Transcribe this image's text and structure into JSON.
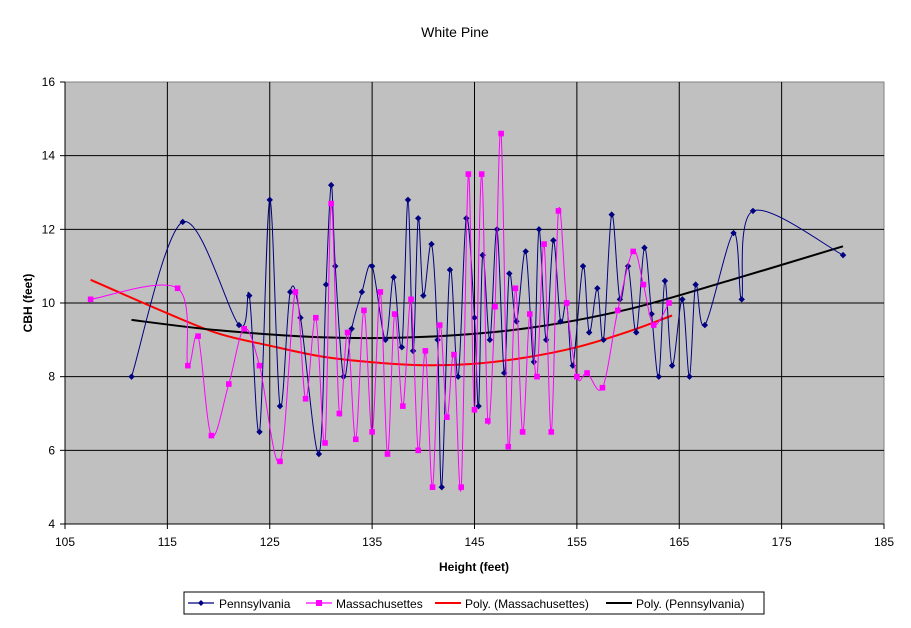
{
  "chart_data": {
    "type": "scatter",
    "title": "White Pine",
    "xlabel": "Height (feet)",
    "ylabel": "CBH (feet)",
    "xlim": [
      105,
      185
    ],
    "ylim": [
      4,
      16
    ],
    "xticks": [
      105,
      115,
      125,
      135,
      145,
      155,
      165,
      175,
      185
    ],
    "yticks": [
      4,
      6,
      8,
      10,
      12,
      14,
      16
    ],
    "grid": true,
    "plot_background": "#C0C0C0",
    "legend_position": "bottom",
    "series": [
      {
        "name": "Pennsylvania",
        "kind": "smoothed-line-markers",
        "marker": "diamond",
        "color": "#000080",
        "x": [
          111.5,
          116.5,
          122,
          123,
          124,
          125,
          126,
          127,
          128,
          129.8,
          130.5,
          131,
          131.4,
          132.2,
          133,
          134,
          135,
          136.3,
          137.1,
          137.9,
          138.5,
          139,
          139.5,
          140,
          140.8,
          141.4,
          141.8,
          142.6,
          143.4,
          144.2,
          145,
          145.4,
          145.8,
          146.5,
          147.2,
          147.9,
          148.4,
          149.1,
          150,
          150.8,
          151.3,
          152,
          152.7,
          153.4,
          154,
          154.6,
          155.6,
          156.2,
          157,
          157.6,
          158.4,
          159.2,
          160,
          160.8,
          161.6,
          162.3,
          163,
          163.6,
          164.3,
          165.3,
          166,
          166.6,
          167.5,
          170.3,
          171.1,
          172.2,
          181
        ],
        "y": [
          8.0,
          12.2,
          9.4,
          10.2,
          6.5,
          12.8,
          7.2,
          10.3,
          9.6,
          5.9,
          10.5,
          13.2,
          11.0,
          8.0,
          9.3,
          10.3,
          11.0,
          9.0,
          10.7,
          8.8,
          12.8,
          8.7,
          12.3,
          10.2,
          11.6,
          9.0,
          5.0,
          10.9,
          8.0,
          12.3,
          9.6,
          7.2,
          11.3,
          9.0,
          12.0,
          8.1,
          10.8,
          9.5,
          11.4,
          8.4,
          12.0,
          9.0,
          11.7,
          9.5,
          10.0,
          8.3,
          11.0,
          9.2,
          10.4,
          9.0,
          12.4,
          10.1,
          11.0,
          9.2,
          11.5,
          9.7,
          8.0,
          10.6,
          8.3,
          10.1,
          8.0,
          10.5,
          9.4,
          11.9,
          10.1,
          12.5,
          11.3
        ]
      },
      {
        "name": "Massachusettes",
        "kind": "smoothed-line-markers",
        "marker": "square",
        "color": "#FF00FF",
        "x": [
          107.5,
          116,
          117,
          118,
          119.3,
          121,
          122.5,
          124,
          126,
          127.5,
          128.5,
          129.5,
          130.4,
          131,
          131.8,
          132.6,
          133.4,
          134.2,
          135,
          135.8,
          136.5,
          137.2,
          138,
          138.8,
          139.5,
          140.2,
          140.9,
          141.6,
          142.3,
          143,
          143.7,
          144.4,
          145,
          145.7,
          146.3,
          147,
          147.6,
          148.3,
          149,
          149.7,
          150.4,
          151.1,
          151.8,
          152.5,
          153.2,
          154,
          155,
          156,
          157.5,
          159,
          160.5,
          161.5,
          162.5,
          164
        ],
        "y": [
          10.1,
          10.4,
          8.3,
          9.1,
          6.4,
          7.8,
          9.3,
          8.3,
          5.7,
          10.3,
          7.4,
          9.6,
          6.2,
          12.7,
          7.0,
          9.2,
          6.3,
          9.8,
          6.5,
          10.3,
          5.9,
          9.7,
          7.2,
          10.1,
          6.0,
          8.7,
          5.0,
          9.4,
          6.9,
          8.6,
          5.0,
          13.5,
          7.1,
          13.5,
          6.8,
          9.9,
          14.6,
          6.1,
          10.4,
          6.5,
          9.7,
          8.0,
          11.6,
          6.5,
          12.5,
          10.0,
          8.0,
          8.1,
          7.7,
          9.8,
          11.4,
          10.5,
          9.4,
          10.0
        ]
      },
      {
        "name": "Poly. (Massachusettes)",
        "kind": "trend-curve",
        "color": "#FF0000",
        "x": [
          107.5,
          115,
          120,
          125,
          130,
          135,
          140,
          145,
          150,
          155,
          160,
          164.3
        ],
        "y": [
          10.63,
          9.72,
          9.17,
          8.84,
          8.55,
          8.39,
          8.31,
          8.35,
          8.52,
          8.8,
          9.22,
          9.66
        ]
      },
      {
        "name": "Poly. (Pennsylvania)",
        "kind": "trend-curve",
        "color": "#000000",
        "x": [
          111.5,
          120,
          130,
          140,
          150,
          160,
          170,
          181
        ],
        "y": [
          9.54,
          9.26,
          9.07,
          9.08,
          9.31,
          9.83,
          10.62,
          11.54
        ]
      }
    ]
  }
}
